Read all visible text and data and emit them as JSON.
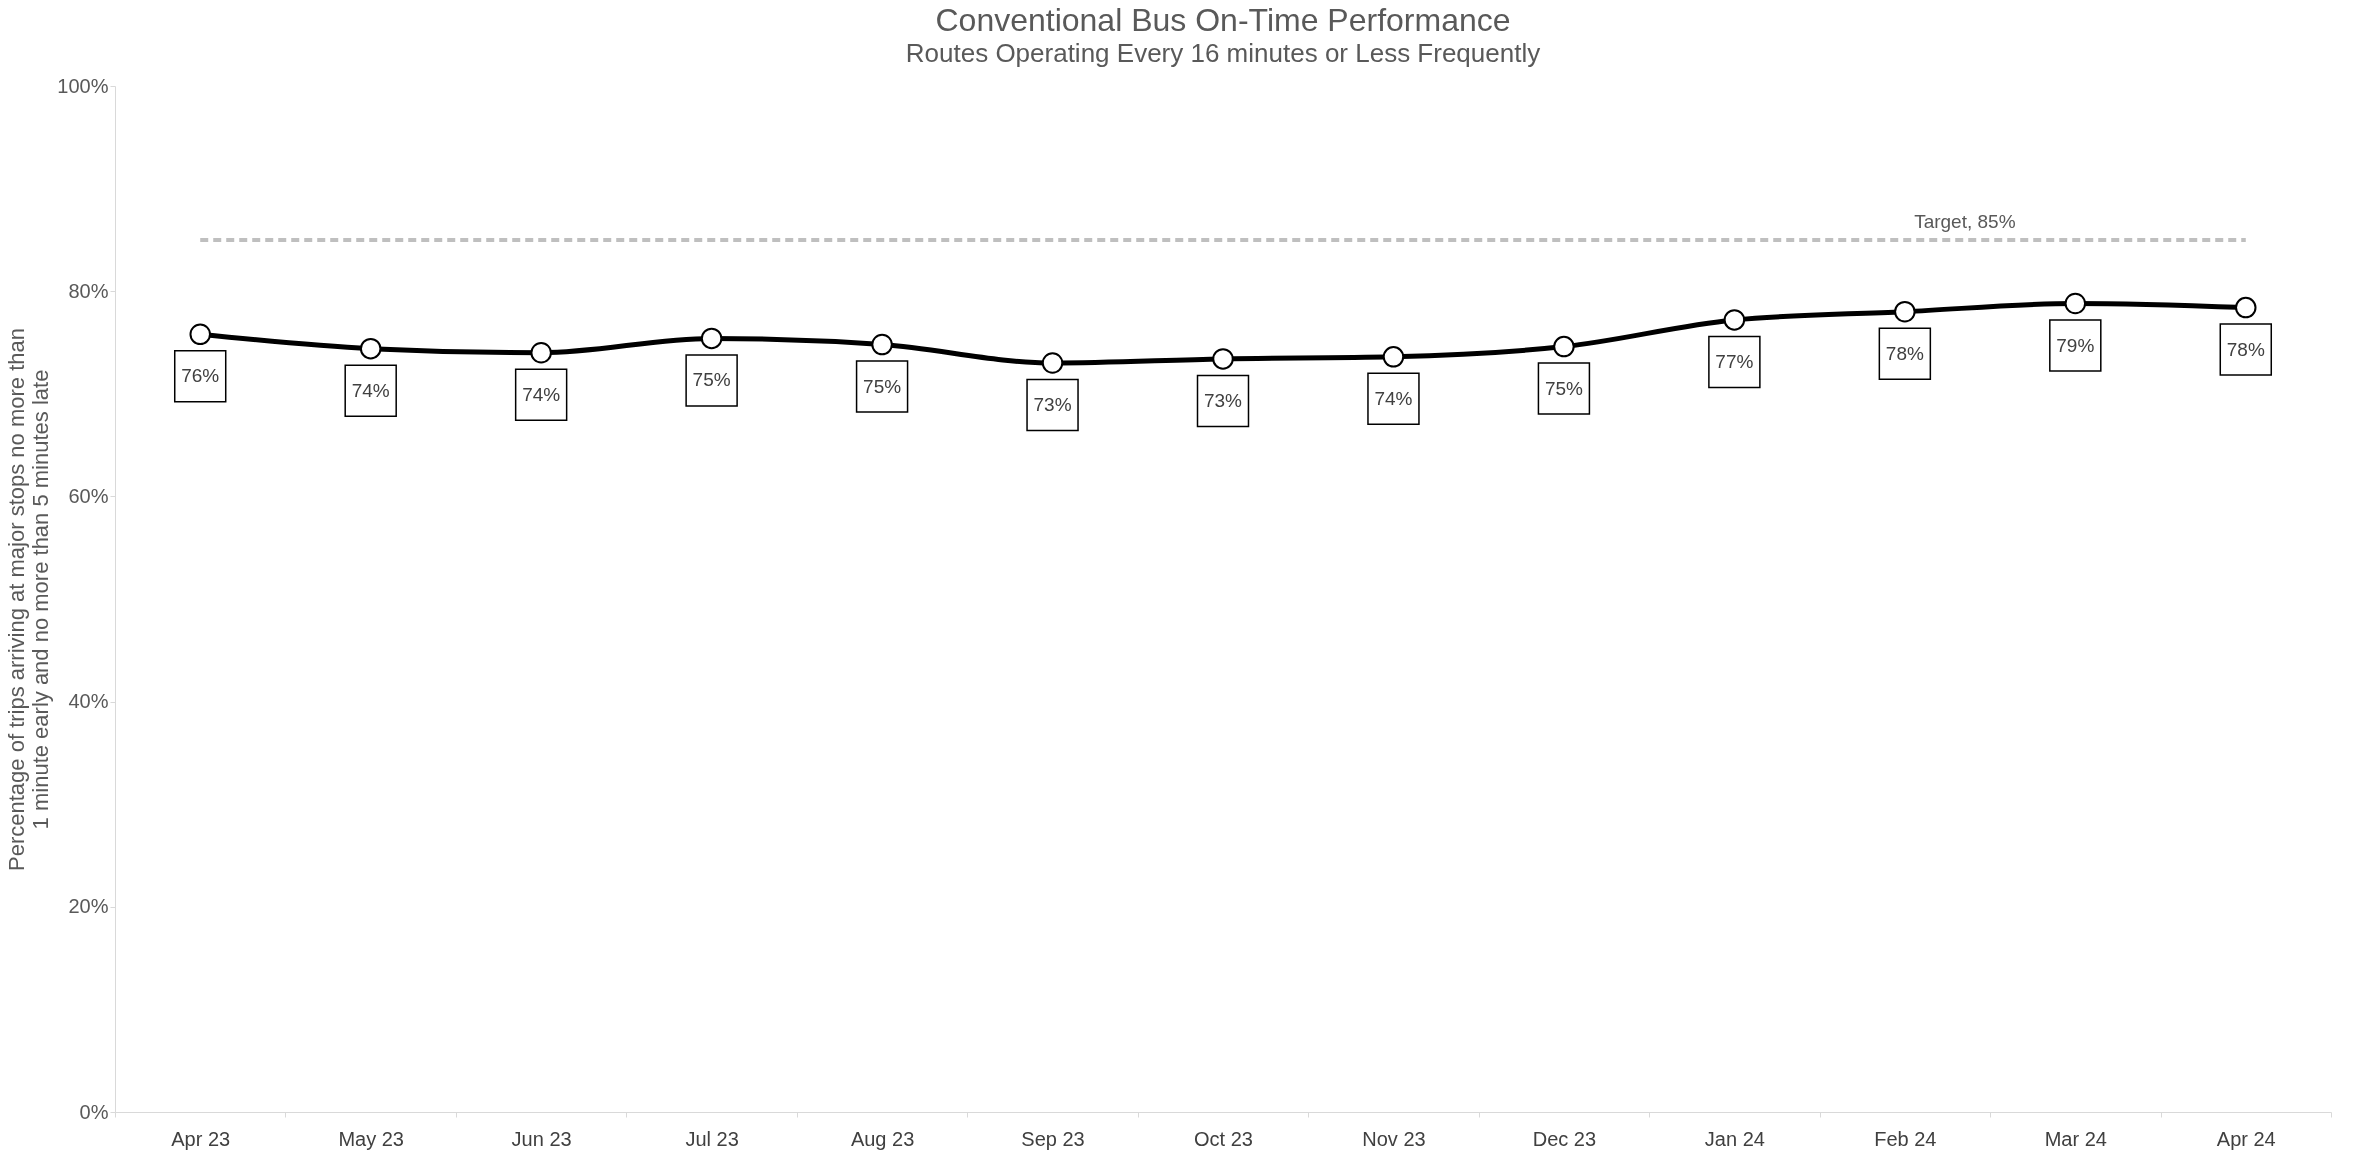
{
  "chart_data": {
    "type": "line",
    "title": "Conventional Bus On-Time Performance",
    "subtitle": "Routes Operating Every 16 minutes or Less Frequently",
    "ylabel": "Percentage of trips arriving at major stops no more than\n1 minute early and no more than 5 minutes late",
    "categories": [
      "Apr 23",
      "May 23",
      "Jun 23",
      "Jul 23",
      "Aug 23",
      "Sep 23",
      "Oct 23",
      "Nov 23",
      "Dec 23",
      "Jan 24",
      "Feb 24",
      "Mar 24",
      "Apr 24"
    ],
    "series": [
      {
        "color": "#000000",
        "values": [
          75.8,
          74.4,
          74.0,
          75.4,
          74.8,
          73.0,
          73.4,
          73.6,
          74.6,
          77.2,
          78.0,
          78.8,
          78.4
        ],
        "value_labels": [
          "76%",
          "74%",
          "74%",
          "75%",
          "75%",
          "73%",
          "73%",
          "74%",
          "75%",
          "77%",
          "78%",
          "79%",
          "78%"
        ]
      }
    ],
    "ylim": [
      0,
      100
    ],
    "yticks": [
      {
        "value": 0,
        "label": "0%"
      },
      {
        "value": 20,
        "label": "20%"
      },
      {
        "value": 40,
        "label": "40%"
      },
      {
        "value": 60,
        "label": "60%"
      },
      {
        "value": 80,
        "label": "80%"
      },
      {
        "value": 100,
        "label": "100%"
      }
    ],
    "ref_lines": [
      {
        "axis": "y",
        "value": 85,
        "label": "Target, 85%",
        "color": "#bfbfbf",
        "line_style": "dashed"
      }
    ],
    "marker": "circle",
    "line_style": "solid",
    "grid": false
  }
}
